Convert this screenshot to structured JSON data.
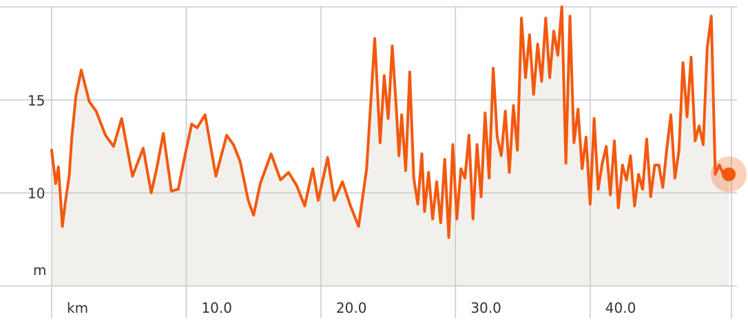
{
  "chart_data": {
    "type": "area",
    "title": "",
    "xlabel": "",
    "ylabel": "",
    "y_unit_label": "m",
    "x_unit_label": "km",
    "xlim": [
      0,
      50.5
    ],
    "ylim": [
      5,
      20
    ],
    "x_ticks": [
      {
        "value": 10,
        "label": "10.0"
      },
      {
        "value": 20,
        "label": "20.0"
      },
      {
        "value": 30,
        "label": "30.0"
      },
      {
        "value": 40,
        "label": "40.0"
      }
    ],
    "y_ticks": [
      {
        "value": 10,
        "label": "10"
      },
      {
        "value": 15,
        "label": "15"
      }
    ],
    "grid": true,
    "line_color": "#F2590F",
    "fill_color": "#F2F0EC",
    "grid_color": "#C8C8C8",
    "marker_color": "#F2590F",
    "marker": {
      "x": 50.3,
      "y": 11.0
    },
    "series": [
      {
        "x": [
          0.0,
          0.3,
          0.5,
          0.8,
          1.0,
          1.3,
          1.5,
          1.8,
          2.2,
          2.8,
          3.3,
          4.0,
          4.6,
          5.2,
          6.0,
          6.8,
          7.4,
          7.8,
          8.3,
          8.9,
          9.4,
          9.9,
          10.4,
          10.8,
          11.4,
          12.2,
          13.0,
          13.5,
          14.0,
          14.6,
          15.0,
          15.5,
          16.3,
          17.0,
          17.6,
          18.2,
          18.8,
          19.4,
          19.8,
          20.5,
          21.0,
          21.6,
          22.2,
          22.8,
          23.4,
          24.0,
          24.4,
          24.7,
          25.0,
          25.3,
          25.6,
          25.8,
          26.0,
          26.3,
          26.6,
          26.9,
          27.2,
          27.5,
          27.7,
          28.0,
          28.3,
          28.6,
          28.9,
          29.2,
          29.5,
          29.8,
          30.1,
          30.4,
          30.7,
          31.0,
          31.3,
          31.6,
          31.9,
          32.2,
          32.5,
          32.8,
          33.1,
          33.4,
          33.7,
          34.0,
          34.3,
          34.6,
          34.9,
          35.2,
          35.5,
          35.8,
          36.1,
          36.4,
          36.7,
          37.0,
          37.3,
          37.6,
          37.9,
          38.2,
          38.5,
          38.8,
          39.1,
          39.4,
          39.7,
          40.0,
          40.3,
          40.6,
          40.9,
          41.2,
          41.5,
          41.8,
          42.1,
          42.4,
          42.7,
          43.0,
          43.3,
          43.6,
          43.9,
          44.2,
          44.5,
          44.8,
          45.1,
          45.4,
          45.7,
          46.0,
          46.3,
          46.6,
          46.9,
          47.2,
          47.5,
          47.8,
          48.1,
          48.4,
          48.7,
          49.0,
          49.3,
          49.6,
          49.9,
          50.1,
          50.3
        ],
        "values": [
          12.3,
          10.5,
          11.4,
          8.2,
          9.4,
          10.9,
          13.0,
          15.2,
          16.6,
          14.9,
          14.4,
          13.1,
          12.5,
          14.0,
          10.9,
          12.4,
          10.0,
          11.3,
          13.2,
          10.1,
          10.2,
          12.0,
          13.7,
          13.5,
          14.2,
          10.9,
          13.1,
          12.6,
          11.7,
          9.6,
          8.8,
          10.5,
          12.1,
          10.7,
          11.1,
          10.4,
          9.3,
          11.3,
          9.6,
          11.9,
          9.6,
          10.6,
          9.3,
          8.2,
          11.3,
          18.3,
          12.7,
          16.3,
          14.0,
          17.9,
          14.6,
          12.0,
          14.2,
          11.2,
          16.5,
          10.8,
          9.4,
          12.1,
          9.0,
          11.1,
          8.6,
          10.6,
          8.4,
          11.8,
          7.6,
          12.6,
          8.6,
          11.3,
          10.8,
          13.1,
          8.6,
          12.6,
          9.8,
          14.3,
          10.8,
          16.7,
          13.0,
          12.0,
          14.4,
          11.1,
          14.7,
          12.3,
          19.4,
          16.2,
          18.5,
          15.3,
          18.0,
          16.0,
          19.4,
          16.2,
          18.7,
          17.4,
          20.0,
          11.6,
          19.5,
          12.7,
          14.5,
          11.3,
          13.0,
          9.4,
          14.0,
          10.2,
          11.6,
          12.5,
          9.9,
          12.8,
          9.2,
          11.5,
          10.7,
          12.0,
          9.3,
          11.0,
          10.2,
          12.9,
          9.8,
          11.5,
          11.5,
          10.3,
          12.4,
          14.2,
          10.8,
          12.3,
          17.0,
          14.1,
          17.3,
          12.8,
          13.6,
          12.6,
          17.8,
          19.5,
          11.0,
          11.5,
          11.0,
          11.0,
          11.0
        ]
      }
    ]
  }
}
